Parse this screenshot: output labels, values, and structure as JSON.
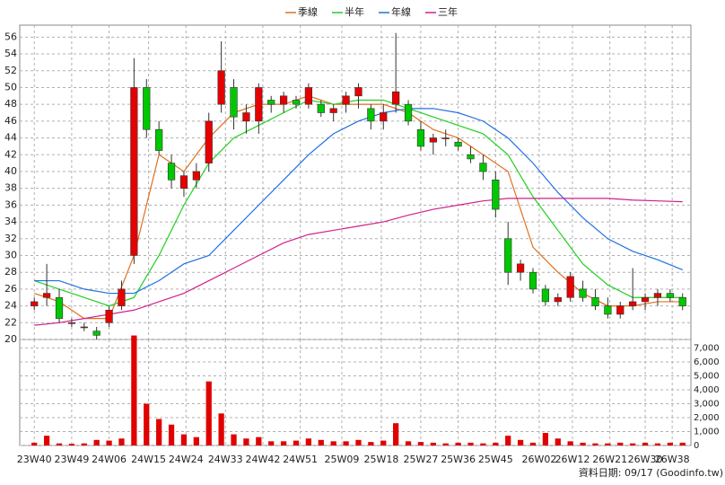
{
  "chart_data": [
    {
      "type": "candlestick",
      "x": [
        0,
        3,
        6,
        9,
        12,
        15,
        18,
        21,
        24,
        27,
        30,
        33,
        36,
        39,
        42,
        45,
        48,
        51,
        54,
        57,
        60,
        63,
        66,
        69,
        72,
        75,
        78,
        81,
        84,
        87,
        90,
        93,
        96,
        99,
        102,
        105,
        108,
        111,
        114,
        117,
        120,
        123,
        126,
        129,
        132,
        135,
        138,
        141,
        144,
        147,
        150,
        153,
        156
      ],
      "open": [
        24,
        25,
        25,
        22,
        21.5,
        21,
        22,
        24,
        30,
        50,
        45,
        41,
        38,
        39,
        41,
        48,
        50,
        46,
        46,
        48.5,
        48,
        48.5,
        48,
        48,
        47,
        48,
        49,
        47.5,
        46,
        48,
        48,
        45,
        43.5,
        44,
        43.5,
        42,
        41,
        39,
        32,
        28,
        28,
        26,
        24.5,
        25,
        26,
        25,
        24,
        23,
        24,
        24.5,
        25,
        25.5,
        25
      ],
      "high": [
        25,
        29,
        26,
        22.5,
        22,
        21.5,
        24,
        27,
        53.5,
        51,
        46,
        42,
        40,
        41,
        47,
        55.5,
        51,
        48,
        50.5,
        49,
        49.5,
        49,
        50.5,
        48.5,
        48,
        49.5,
        50.5,
        48,
        48,
        56.5,
        48.5,
        46,
        44.5,
        45,
        44,
        43,
        42,
        40,
        34,
        29.5,
        28.5,
        26.5,
        25.5,
        28,
        27,
        26,
        25,
        24.5,
        28.5,
        25.5,
        26,
        26,
        25.5
      ],
      "low": [
        23.5,
        24,
        22,
        21.5,
        21,
        20,
        21.5,
        23.5,
        29,
        44,
        42,
        38,
        37,
        38,
        40,
        47,
        45,
        44.5,
        44.5,
        47,
        47,
        47.5,
        47.5,
        46.5,
        46,
        47,
        47.5,
        45,
        45,
        47,
        45.5,
        42.5,
        42,
        43,
        42.5,
        41,
        39,
        34.5,
        26.5,
        27,
        25.5,
        24,
        24,
        24.5,
        24.5,
        23.5,
        22.5,
        22.5,
        23.5,
        23.5,
        24,
        24.5,
        23.5
      ],
      "close": [
        24.5,
        25.5,
        22.5,
        22,
        21.5,
        20.5,
        23.5,
        26,
        50,
        45,
        42.5,
        39,
        39.5,
        40,
        46,
        52,
        46.5,
        47,
        50,
        48,
        49,
        48,
        50,
        47,
        47.5,
        49,
        50,
        46,
        47,
        49.5,
        46,
        43,
        44,
        44,
        43,
        41.5,
        40,
        35.5,
        28,
        29,
        26,
        24.5,
        25,
        27.5,
        25,
        24,
        23,
        24,
        24.5,
        25,
        25.5,
        25,
        24
      ],
      "up_color": "#e60000",
      "down_color": "#00c800",
      "lines": [
        {
          "name": "季線",
          "color": "#e07020",
          "x": [
            0,
            6,
            12,
            18,
            24,
            30,
            36,
            42,
            48,
            54,
            60,
            66,
            72,
            78,
            84,
            90,
            96,
            102,
            108,
            114,
            120,
            126,
            132,
            138,
            144,
            150,
            156
          ],
          "values": [
            25.5,
            24.5,
            22.5,
            22.5,
            30,
            42,
            40,
            44,
            47,
            48,
            48,
            49,
            48,
            48,
            48,
            47,
            45,
            44,
            42,
            40,
            31,
            28,
            25.5,
            24,
            24,
            24.5,
            24.5
          ]
        },
        {
          "name": "半年",
          "color": "#20d020",
          "x": [
            0,
            6,
            12,
            18,
            24,
            30,
            36,
            42,
            48,
            54,
            60,
            66,
            72,
            78,
            84,
            90,
            96,
            102,
            108,
            114,
            120,
            126,
            132,
            138,
            144,
            150,
            156
          ],
          "values": [
            27,
            26,
            25,
            24,
            25,
            30,
            36,
            41,
            44,
            45.5,
            47,
            48.5,
            48,
            48.5,
            48.5,
            47.5,
            46.5,
            45.5,
            44.5,
            42,
            37,
            33,
            29,
            26.5,
            25,
            25,
            25
          ]
        },
        {
          "name": "年線",
          "color": "#2070e0",
          "x": [
            0,
            6,
            12,
            18,
            24,
            30,
            36,
            42,
            48,
            54,
            60,
            66,
            72,
            78,
            84,
            90,
            96,
            102,
            108,
            114,
            120,
            126,
            132,
            138,
            144,
            150,
            156
          ],
          "values": [
            27,
            27,
            26,
            25.5,
            25.5,
            27,
            29,
            30,
            33,
            36,
            39,
            42,
            44.5,
            46,
            47,
            47.5,
            47.5,
            47,
            46,
            44,
            41,
            37.5,
            34.5,
            32,
            30.5,
            29.5,
            28.3
          ]
        },
        {
          "name": "三年",
          "color": "#d0208a",
          "x": [
            0,
            6,
            12,
            18,
            24,
            30,
            36,
            42,
            48,
            54,
            60,
            66,
            72,
            78,
            84,
            90,
            96,
            102,
            108,
            114,
            120,
            126,
            132,
            138,
            144,
            150,
            156
          ],
          "values": [
            21.7,
            22,
            22.5,
            23,
            23.5,
            24.5,
            25.5,
            27,
            28.5,
            30,
            31.5,
            32.5,
            33,
            33.5,
            34,
            34.8,
            35.5,
            36,
            36.5,
            36.8,
            36.8,
            36.8,
            36.8,
            36.8,
            36.6,
            36.5,
            36.4
          ]
        }
      ],
      "xlim": [
        -3.5,
        158
      ],
      "ylim": [
        20,
        57
      ],
      "yticks": [
        20,
        22,
        24,
        26,
        28,
        30,
        32,
        34,
        36,
        38,
        40,
        42,
        44,
        46,
        48,
        50,
        52,
        54,
        56
      ],
      "grid": true
    },
    {
      "type": "bar",
      "x": [
        0,
        3,
        6,
        9,
        12,
        15,
        18,
        21,
        24,
        27,
        30,
        33,
        36,
        39,
        42,
        45,
        48,
        51,
        54,
        57,
        60,
        63,
        66,
        69,
        72,
        75,
        78,
        81,
        84,
        87,
        90,
        93,
        96,
        99,
        102,
        105,
        108,
        111,
        114,
        117,
        120,
        123,
        126,
        129,
        132,
        135,
        138,
        141,
        144,
        147,
        150,
        153,
        156
      ],
      "values": [
        200,
        700,
        150,
        120,
        150,
        400,
        350,
        500,
        7900,
        3000,
        1900,
        1500,
        800,
        600,
        4600,
        2300,
        800,
        500,
        600,
        300,
        300,
        350,
        500,
        400,
        300,
        300,
        400,
        250,
        350,
        1600,
        300,
        250,
        200,
        150,
        200,
        200,
        150,
        200,
        700,
        400,
        200,
        900,
        500,
        300,
        200,
        150,
        150,
        200,
        150,
        200,
        150,
        200,
        200
      ],
      "color": "#e00000",
      "xlim": [
        -3.5,
        158
      ],
      "ylim": [
        0,
        8000
      ],
      "xticks": [
        {
          "value": 0,
          "label": "23W40"
        },
        {
          "value": 9,
          "label": "23W49"
        },
        {
          "value": 18,
          "label": "24W06"
        },
        {
          "value": 27.5,
          "label": "24W15"
        },
        {
          "value": 36.5,
          "label": "24W24"
        },
        {
          "value": 46,
          "label": "24W33"
        },
        {
          "value": 55,
          "label": "24W42"
        },
        {
          "value": 64,
          "label": "24W51"
        },
        {
          "value": 74,
          "label": "25W09"
        },
        {
          "value": 83.5,
          "label": "25W18"
        },
        {
          "value": 93,
          "label": "25W27"
        },
        {
          "value": 102,
          "label": "25W36"
        },
        {
          "value": 111,
          "label": "25W45"
        },
        {
          "value": 121.5,
          "label": "26W02"
        },
        {
          "value": 129.5,
          "label": "26W12"
        },
        {
          "value": 138.5,
          "label": "26W21"
        },
        {
          "value": 147,
          "label": "26W30"
        },
        {
          "value": 153.5,
          "label": "26W38"
        }
      ],
      "yticks": [
        0,
        {
          "value": 1000,
          "label": "1,000"
        },
        {
          "value": 2000,
          "label": "2,000"
        },
        {
          "value": 3000,
          "label": "3,000"
        },
        {
          "value": 4000,
          "label": "4,000"
        },
        {
          "value": 5000,
          "label": "5,000"
        },
        {
          "value": 6000,
          "label": "6,000"
        },
        {
          "value": 7000,
          "label": "7,000"
        }
      ],
      "grid": true
    }
  ],
  "footer": "資料日期: 09/17 (Goodinfo.tw)"
}
